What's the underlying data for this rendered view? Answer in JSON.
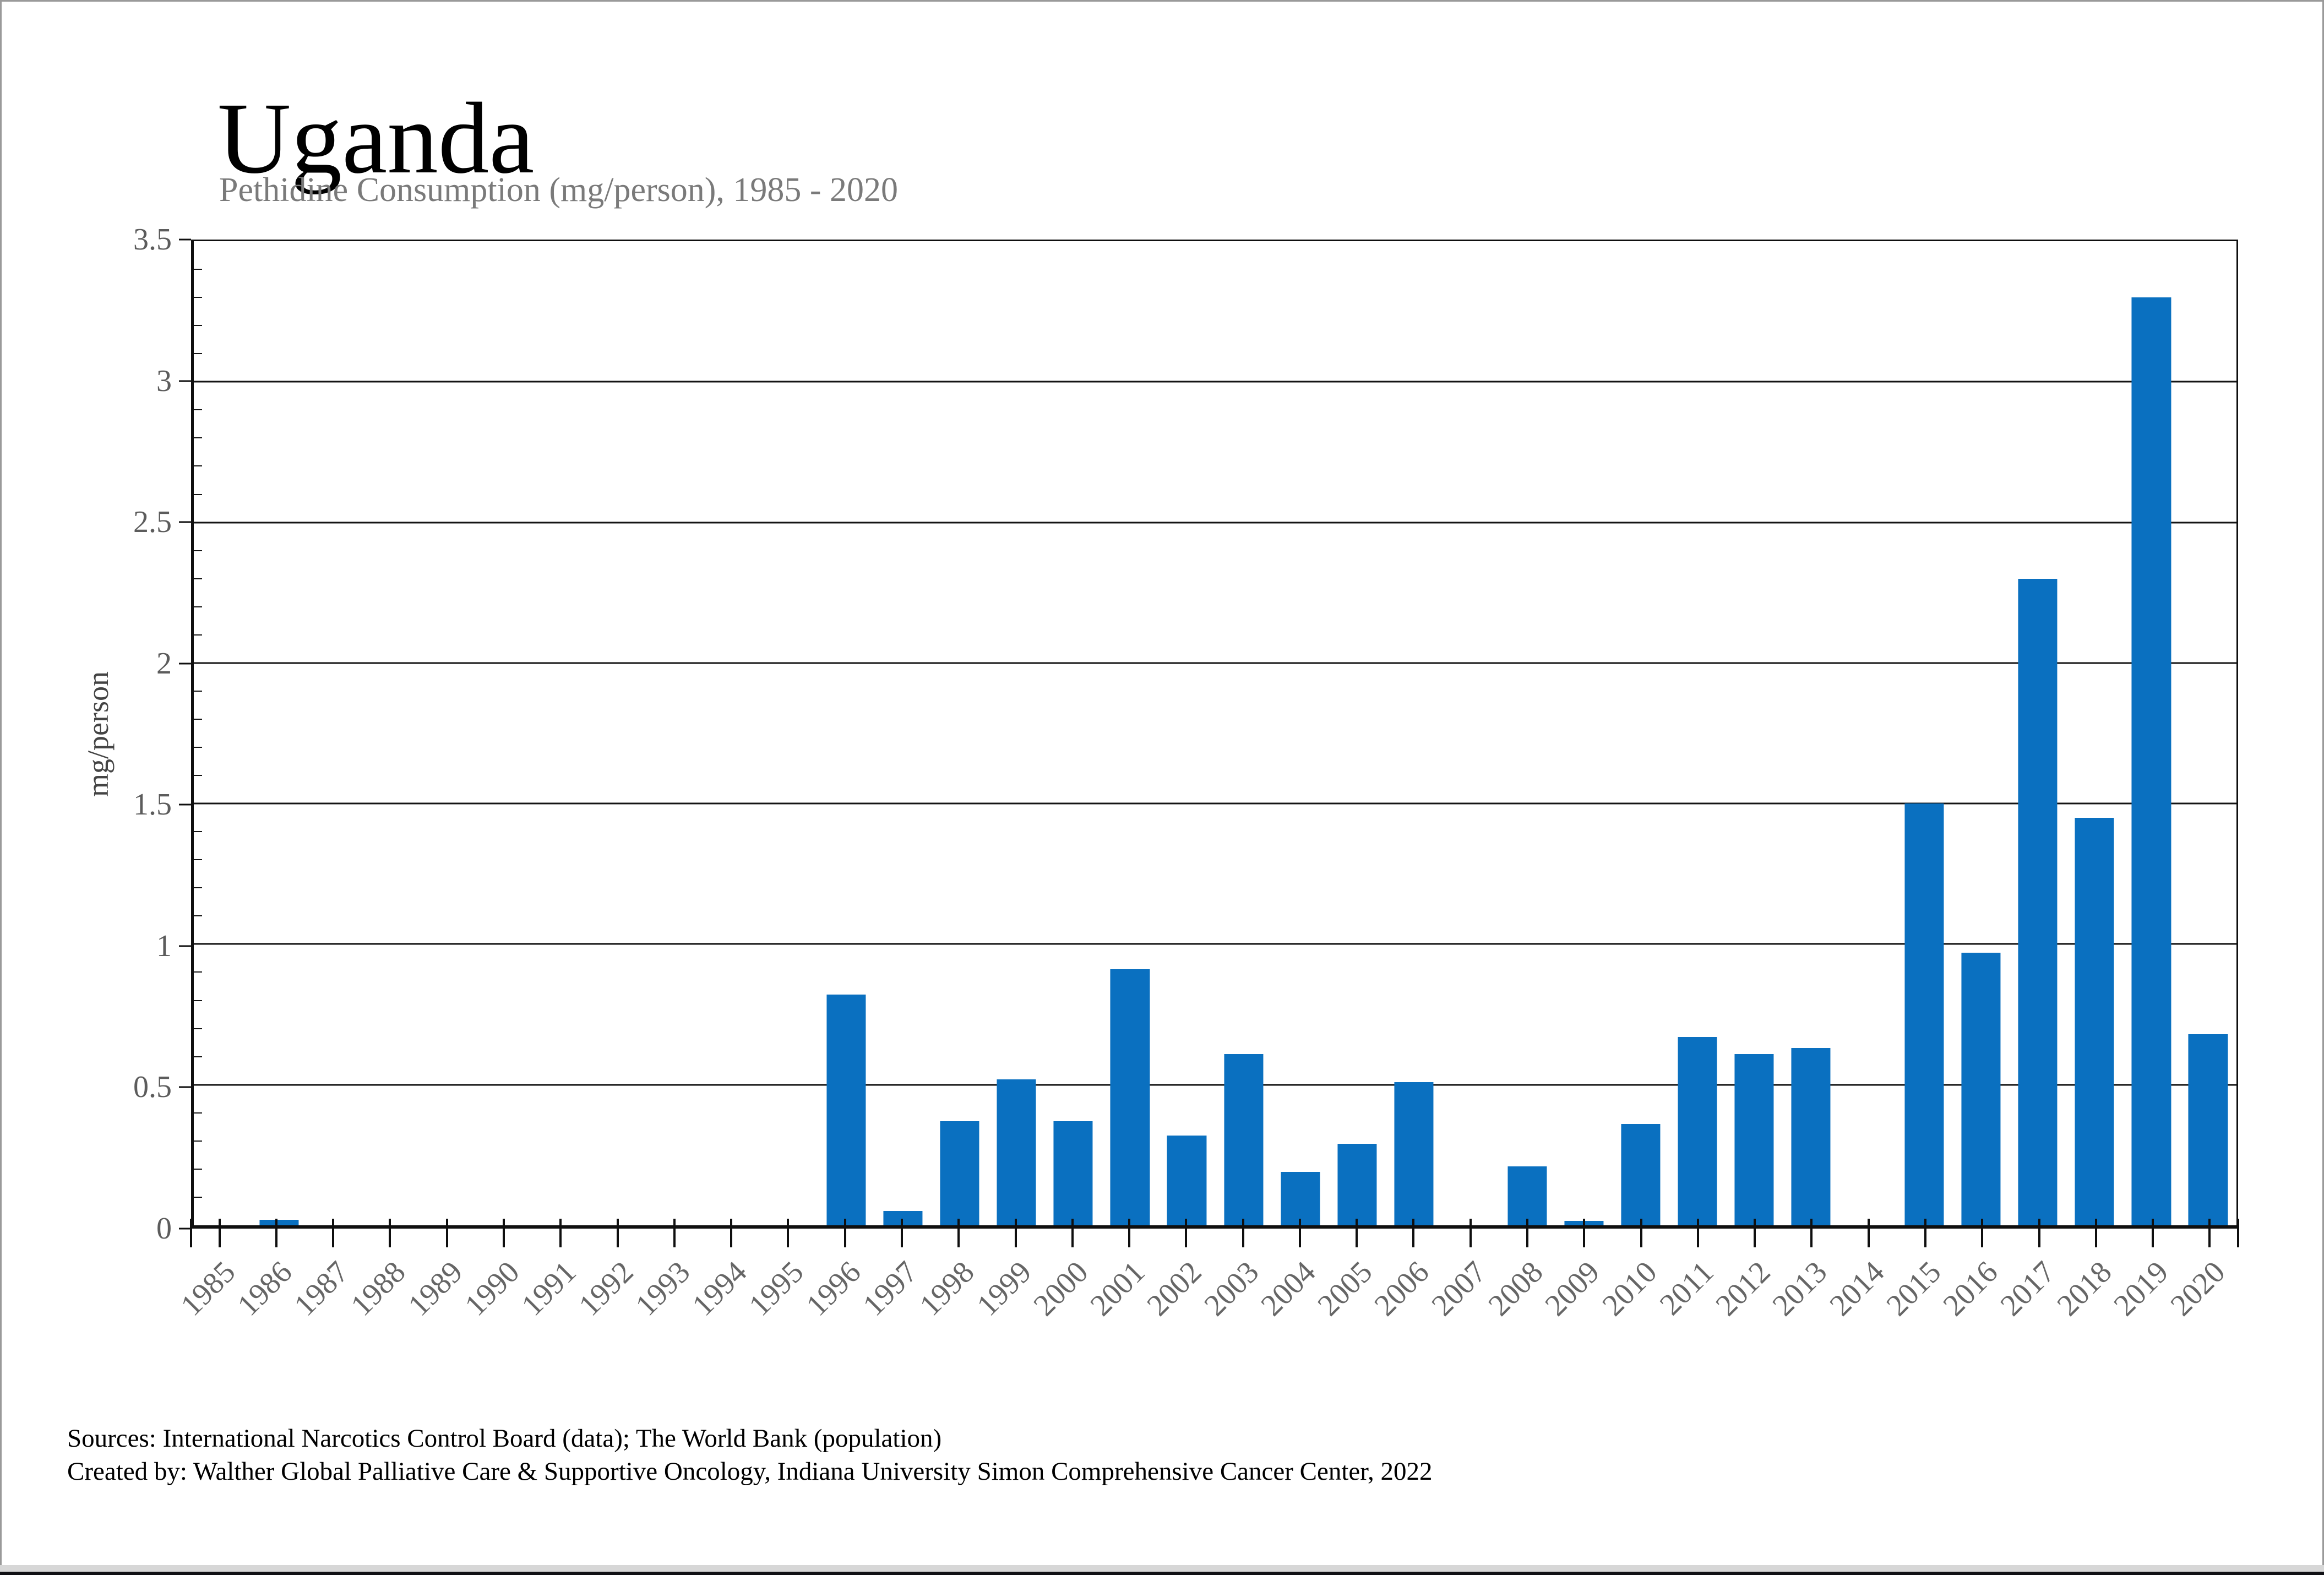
{
  "header": {
    "title": "Uganda",
    "subtitle": "Pethidine Consumption (mg/person), 1985 - 2020"
  },
  "axes": {
    "y_title": "mg/person",
    "y_max": 3.5,
    "y_tick_labels": [
      "0",
      "0.5",
      "1",
      "1.5",
      "2",
      "2.5",
      "3",
      "3.5"
    ],
    "y_tick_values": [
      0,
      0.5,
      1,
      1.5,
      2,
      2.5,
      3,
      3.5
    ],
    "y_minor_step": 0.1
  },
  "footer": {
    "sources": "Sources: International Narcotics Control Board (data); The World Bank (population)",
    "created_by": "Created by: Walther Global Palliative Care & Supportive Oncology, Indiana University Simon Comprehensive Cancer Center, 2022"
  },
  "colors": {
    "bar": "#0A70C0",
    "grid": "#141414",
    "subtitle_text": "#7a7a7a",
    "tick_text": "#666666",
    "y_tick_text": "#5c5c5c",
    "bottom_strip": "#101014",
    "bottom_gray": "#d7d7d7",
    "frame_edge": "#9a9a9a"
  },
  "chart_data": {
    "type": "bar",
    "title": "Uganda",
    "subtitle": "Pethidine Consumption (mg/person), 1985 - 2020",
    "xlabel": "",
    "ylabel": "mg/person",
    "ylim": [
      0,
      3.5
    ],
    "grid": "horizontal",
    "legend": "none",
    "bar_color": "#0A70C0",
    "categories": [
      1985,
      1986,
      1987,
      1988,
      1989,
      1990,
      1991,
      1992,
      1993,
      1994,
      1995,
      1996,
      1997,
      1998,
      1999,
      2000,
      2001,
      2002,
      2003,
      2004,
      2005,
      2006,
      2007,
      2008,
      2009,
      2010,
      2011,
      2012,
      2013,
      2014,
      2015,
      2016,
      2017,
      2018,
      2019,
      2020
    ],
    "values": [
      0,
      0.02,
      0,
      0,
      0,
      0,
      0,
      0,
      0,
      0,
      0,
      0.82,
      0.05,
      0.37,
      0.52,
      0.37,
      0.91,
      0.32,
      0.61,
      0.19,
      0.29,
      0.51,
      0,
      0.21,
      0.015,
      0.36,
      0.67,
      0.61,
      0.63,
      0,
      1.5,
      0.97,
      2.3,
      1.45,
      3.3,
      0.68
    ]
  }
}
